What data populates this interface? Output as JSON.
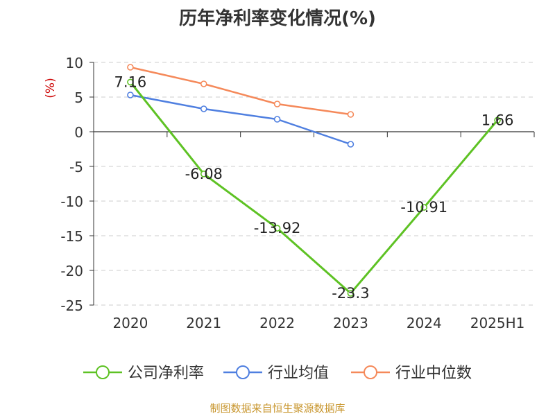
{
  "chart_data": {
    "type": "line",
    "title": "历年净利率变化情况(%)",
    "ylabel": "(%)",
    "ylim": [
      -25,
      10
    ],
    "yticks": [
      10,
      5,
      0,
      -5,
      -10,
      -15,
      -20,
      -25
    ],
    "categories": [
      "2020",
      "2021",
      "2022",
      "2023",
      "2024",
      "2025H1"
    ],
    "grid": true,
    "legend_position": "bottom",
    "series": [
      {
        "name": "公司净利率",
        "color": "#5ec224",
        "values": [
          7.16,
          -6.08,
          -13.92,
          -23.3,
          -10.91,
          1.66
        ],
        "labels": [
          "7.16",
          "-6.08",
          "-13.92",
          "-23.3",
          "-10.91",
          "1.66"
        ]
      },
      {
        "name": "行业均值",
        "color": "#4f7fe0",
        "values": [
          5.3,
          3.3,
          1.8,
          -1.8,
          null,
          null
        ]
      },
      {
        "name": "行业中位数",
        "color": "#f5895a",
        "values": [
          9.3,
          6.9,
          4.0,
          2.5,
          null,
          null
        ]
      }
    ]
  },
  "footer": {
    "source": "制图数据来自恒生聚源数据库"
  }
}
